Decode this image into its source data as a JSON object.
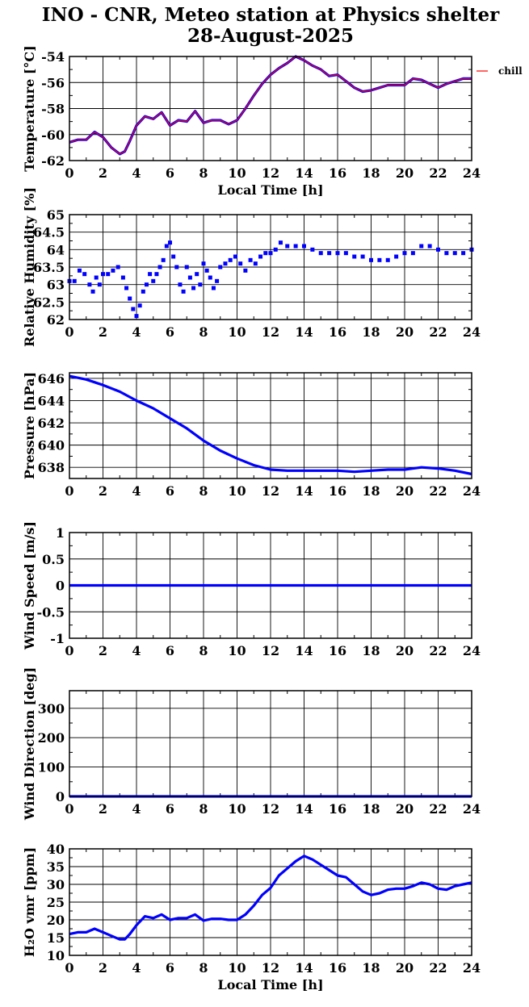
{
  "title": {
    "line1": "INO - CNR, Meteo station at Physics shelter",
    "line2": "28-August-2025"
  },
  "colors": {
    "series": "#0000ff",
    "chill": "#ff0000",
    "axes": "#000000",
    "grid": "#000000"
  },
  "chart_data": [
    {
      "type": "line",
      "ylabel": "Temperature [°C]",
      "xlabel": "Local Time [h]",
      "xlim": [
        0,
        24
      ],
      "ylim": [
        -62,
        -54
      ],
      "xticks": [
        0,
        2,
        4,
        6,
        8,
        10,
        12,
        14,
        16,
        18,
        20,
        22,
        24
      ],
      "yticks": [
        -62,
        -60,
        -58,
        -56,
        -54
      ],
      "grid": true,
      "legend": {
        "entries": [
          "chill"
        ],
        "position": "top-right outside"
      },
      "series": [
        {
          "color": "#0000ff",
          "x": [
            0,
            0.5,
            1,
            1.5,
            2,
            2.5,
            3,
            3.3,
            3.6,
            4,
            4.5,
            5,
            5.5,
            6,
            6.5,
            7,
            7.5,
            8,
            8.5,
            9,
            9.5,
            10,
            10.5,
            11,
            11.5,
            12,
            12.5,
            13,
            13.5,
            14,
            14.5,
            15,
            15.5,
            16,
            16.5,
            17,
            17.5,
            18,
            18.5,
            19,
            19.5,
            20,
            20.5,
            21,
            21.5,
            22,
            22.5,
            23,
            23.5,
            24
          ],
          "y": [
            -60.6,
            -60.4,
            -60.4,
            -59.8,
            -60.2,
            -61.0,
            -61.5,
            -61.3,
            -60.5,
            -59.3,
            -58.6,
            -58.8,
            -58.3,
            -59.3,
            -58.9,
            -59.0,
            -58.2,
            -59.1,
            -58.9,
            -58.9,
            -59.2,
            -58.9,
            -58.0,
            -57.0,
            -56.1,
            -55.4,
            -54.9,
            -54.5,
            -54.0,
            -54.3,
            -54.7,
            -55.0,
            -55.5,
            -55.4,
            -55.9,
            -56.4,
            -56.7,
            -56.6,
            -56.4,
            -56.2,
            -56.2,
            -56.2,
            -55.7,
            -55.8,
            -56.1,
            -56.4,
            -56.1,
            -55.9,
            -55.7,
            -55.7
          ]
        },
        {
          "name": "chill",
          "color": "#ff0000",
          "x": [
            0,
            0.5,
            1,
            1.5,
            2,
            2.5,
            3,
            3.3,
            3.6,
            4,
            4.5,
            5,
            5.5,
            6,
            6.5,
            7,
            7.5,
            8,
            8.5,
            9,
            9.5,
            10,
            10.5,
            11,
            11.5,
            12,
            12.5,
            13,
            13.5,
            14,
            14.5,
            15,
            15.5,
            16,
            16.5,
            17,
            17.5,
            18,
            18.5,
            19,
            19.5,
            20,
            20.5,
            21,
            21.5,
            22,
            22.5,
            23,
            23.5,
            24
          ],
          "y": [
            -60.6,
            -60.4,
            -60.4,
            -59.8,
            -60.2,
            -61.0,
            -61.5,
            -61.3,
            -60.5,
            -59.3,
            -58.6,
            -58.8,
            -58.3,
            -59.3,
            -58.9,
            -59.0,
            -58.2,
            -59.1,
            -58.9,
            -58.9,
            -59.2,
            -58.9,
            -58.0,
            -57.0,
            -56.1,
            -55.4,
            -54.9,
            -54.5,
            -54.0,
            -54.3,
            -54.7,
            -55.0,
            -55.5,
            -55.4,
            -55.9,
            -56.4,
            -56.7,
            -56.6,
            -56.4,
            -56.2,
            -56.2,
            -56.2,
            -55.7,
            -55.8,
            -56.1,
            -56.4,
            -56.1,
            -55.9,
            -55.7,
            -55.7
          ]
        }
      ]
    },
    {
      "type": "scatter",
      "ylabel": "Relative Humidity [%]",
      "xlabel": "",
      "xlim": [
        0,
        24
      ],
      "ylim": [
        62,
        65
      ],
      "xticks": [
        0,
        2,
        4,
        6,
        8,
        10,
        12,
        14,
        16,
        18,
        20,
        22,
        24
      ],
      "yticks": [
        62,
        62.5,
        63,
        63.5,
        64,
        64.5,
        65
      ],
      "grid": true,
      "series": [
        {
          "color": "#0000ff",
          "x": [
            0,
            0.3,
            0.6,
            0.9,
            1.2,
            1.4,
            1.6,
            1.8,
            2.0,
            2.3,
            2.6,
            2.9,
            3.2,
            3.4,
            3.6,
            3.8,
            4.0,
            4.2,
            4.4,
            4.6,
            4.8,
            5.0,
            5.2,
            5.4,
            5.6,
            5.8,
            6.0,
            6.2,
            6.4,
            6.6,
            6.8,
            7.0,
            7.2,
            7.4,
            7.6,
            7.8,
            8.0,
            8.2,
            8.4,
            8.6,
            8.8,
            9.0,
            9.3,
            9.6,
            9.9,
            10.2,
            10.5,
            10.8,
            11.1,
            11.4,
            11.7,
            12.0,
            12.3,
            12.6,
            13.0,
            13.5,
            14.0,
            14.5,
            15.0,
            15.5,
            16.0,
            16.5,
            17.0,
            17.5,
            18.0,
            18.5,
            19.0,
            19.5,
            20.0,
            20.5,
            21.0,
            21.5,
            22.0,
            22.5,
            23.0,
            23.5,
            24.0
          ],
          "y": [
            63.1,
            63.1,
            63.4,
            63.3,
            63.0,
            62.8,
            63.2,
            63.0,
            63.3,
            63.3,
            63.4,
            63.5,
            63.2,
            62.9,
            62.6,
            62.3,
            62.1,
            62.4,
            62.8,
            63.0,
            63.3,
            63.1,
            63.3,
            63.5,
            63.7,
            64.1,
            64.2,
            63.8,
            63.5,
            63.0,
            62.8,
            63.5,
            63.2,
            62.9,
            63.3,
            63.0,
            63.6,
            63.4,
            63.2,
            62.9,
            63.1,
            63.5,
            63.6,
            63.7,
            63.8,
            63.6,
            63.4,
            63.7,
            63.6,
            63.8,
            63.9,
            63.9,
            64.0,
            64.2,
            64.1,
            64.1,
            64.1,
            64.0,
            63.9,
            63.9,
            63.9,
            63.9,
            63.8,
            63.8,
            63.7,
            63.7,
            63.7,
            63.8,
            63.9,
            63.9,
            64.1,
            64.1,
            64.0,
            63.9,
            63.9,
            63.9,
            64.0
          ]
        }
      ]
    },
    {
      "type": "line",
      "ylabel": "Pressure [hPa]",
      "xlabel": "",
      "xlim": [
        0,
        24
      ],
      "ylim": [
        637,
        646.5
      ],
      "xticks": [
        0,
        2,
        4,
        6,
        8,
        10,
        12,
        14,
        16,
        18,
        20,
        22,
        24
      ],
      "yticks": [
        638,
        640,
        642,
        644,
        646
      ],
      "grid": true,
      "series": [
        {
          "color": "#0000ff",
          "x": [
            0,
            1,
            2,
            3,
            4,
            5,
            6,
            7,
            8,
            9,
            10,
            11,
            12,
            13,
            14,
            15,
            16,
            17,
            18,
            19,
            20,
            21,
            22,
            23,
            24
          ],
          "y": [
            646.2,
            645.9,
            645.4,
            644.8,
            644.0,
            643.3,
            642.4,
            641.5,
            640.4,
            639.5,
            638.8,
            638.2,
            637.8,
            637.7,
            637.7,
            637.7,
            637.7,
            637.6,
            637.7,
            637.8,
            637.8,
            638.0,
            637.9,
            637.7,
            637.4
          ]
        }
      ]
    },
    {
      "type": "line",
      "ylabel": "Wind Speed [m/s]",
      "xlabel": "",
      "xlim": [
        0,
        24
      ],
      "ylim": [
        -1,
        1
      ],
      "xticks": [
        0,
        2,
        4,
        6,
        8,
        10,
        12,
        14,
        16,
        18,
        20,
        22,
        24
      ],
      "yticks": [
        -1,
        -0.5,
        0,
        0.5,
        1
      ],
      "grid": true,
      "series": [
        {
          "color": "#0000ff",
          "x": [
            0,
            24
          ],
          "y": [
            0,
            0
          ]
        }
      ]
    },
    {
      "type": "line",
      "ylabel": "Wind Direction [deg]",
      "xlabel": "",
      "xlim": [
        0,
        24
      ],
      "ylim": [
        0,
        360
      ],
      "xticks": [
        0,
        2,
        4,
        6,
        8,
        10,
        12,
        14,
        16,
        18,
        20,
        22,
        24
      ],
      "yticks": [
        0,
        100,
        200,
        300
      ],
      "grid": true,
      "series": [
        {
          "color": "#0000ff",
          "x": [
            0,
            24
          ],
          "y": [
            0,
            0
          ]
        }
      ]
    },
    {
      "type": "line",
      "ylabel": "H₂O vmr [ppm]",
      "xlabel": "Local Time [h]",
      "xlim": [
        0,
        24
      ],
      "ylim": [
        10,
        40
      ],
      "xticks": [
        0,
        2,
        4,
        6,
        8,
        10,
        12,
        14,
        16,
        18,
        20,
        22,
        24
      ],
      "yticks": [
        10,
        15,
        20,
        25,
        30,
        35,
        40
      ],
      "grid": true,
      "series": [
        {
          "color": "#0000ff",
          "x": [
            0,
            0.5,
            1,
            1.5,
            2,
            2.5,
            3,
            3.3,
            3.6,
            4,
            4.5,
            5,
            5.5,
            6,
            6.5,
            7,
            7.5,
            8,
            8.5,
            9,
            9.5,
            10,
            10.5,
            11,
            11.5,
            12,
            12.5,
            13,
            13.5,
            14,
            14.5,
            15,
            15.5,
            16,
            16.5,
            17,
            17.5,
            18,
            18.5,
            19,
            19.5,
            20,
            20.5,
            21,
            21.5,
            22,
            22.5,
            23,
            23.5,
            24
          ],
          "y": [
            16,
            16.5,
            16.5,
            17.5,
            16.5,
            15.5,
            14.5,
            14.5,
            16,
            18.5,
            21,
            20.5,
            21.5,
            20,
            20.5,
            20.5,
            21.5,
            19.8,
            20.3,
            20.3,
            20,
            20,
            21.5,
            24,
            27,
            29,
            32.5,
            34.5,
            36.5,
            38,
            37,
            35.5,
            34,
            32.5,
            32,
            30,
            28,
            27,
            27.5,
            28.5,
            28.8,
            28.8,
            29.5,
            30.5,
            30,
            28.8,
            28.5,
            29.5,
            30,
            30.5
          ]
        }
      ]
    }
  ]
}
